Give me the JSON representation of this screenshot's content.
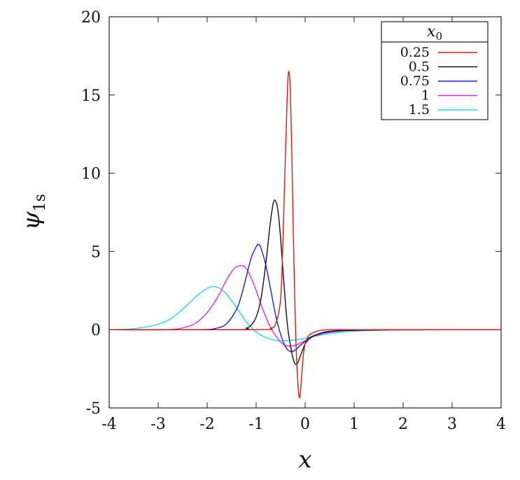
{
  "chart_data": {
    "type": "line",
    "xlabel": "x",
    "ylabel_main": "ψ",
    "ylabel_sub": "1s",
    "xlim": [
      -4,
      4
    ],
    "ylim": [
      -5,
      20
    ],
    "xticks": [
      "-4",
      "-3",
      "-2",
      "-1",
      "0",
      "1",
      "2",
      "3",
      "4"
    ],
    "xtick_values": [
      -4,
      -3,
      -2,
      -1,
      0,
      1,
      2,
      3,
      4
    ],
    "yticks": [
      "-5",
      "0",
      "5",
      "10",
      "15",
      "20"
    ],
    "ytick_values": [
      -5,
      0,
      5,
      10,
      15,
      20
    ],
    "grid": false,
    "legend": {
      "placement": "top-right",
      "title_main": "x",
      "title_sub": "0"
    },
    "series": [
      {
        "name": "0.25",
        "color": "#e8140c",
        "x": [
          -4.0,
          -1.0,
          -0.7,
          -0.6,
          -0.5,
          -0.45,
          -0.4,
          -0.36,
          -0.33,
          -0.3,
          -0.27,
          -0.24,
          -0.2,
          -0.17,
          -0.14,
          -0.12,
          -0.1,
          -0.08,
          -0.06,
          -0.04,
          0.0,
          0.05,
          0.1,
          0.2,
          0.3,
          0.5,
          1.0,
          2.0,
          4.0
        ],
        "values": [
          0.0,
          0.0,
          0.1,
          0.4,
          2.0,
          6.0,
          11.5,
          15.5,
          16.5,
          15.0,
          11.0,
          6.0,
          0.5,
          -2.2,
          -3.8,
          -4.35,
          -4.1,
          -3.4,
          -2.5,
          -1.7,
          -0.9,
          -0.5,
          -0.3,
          -0.15,
          -0.05,
          0.0,
          0.0,
          0.0,
          0.0
        ]
      },
      {
        "name": "0.5",
        "color": "#111111",
        "x": [
          -4.0,
          -1.4,
          -1.2,
          -1.1,
          -1.0,
          -0.9,
          -0.8,
          -0.72,
          -0.65,
          -0.6,
          -0.55,
          -0.5,
          -0.45,
          -0.4,
          -0.35,
          -0.3,
          -0.25,
          -0.2,
          -0.15,
          -0.1,
          -0.05,
          0.0,
          0.1,
          0.2,
          0.4,
          0.6,
          1.0,
          2.0,
          4.0
        ],
        "values": [
          0.0,
          0.0,
          0.1,
          0.3,
          0.8,
          2.0,
          4.3,
          6.6,
          8.1,
          8.2,
          7.5,
          5.8,
          3.7,
          1.6,
          0.0,
          -1.0,
          -1.8,
          -2.2,
          -2.1,
          -1.7,
          -1.3,
          -0.9,
          -0.55,
          -0.35,
          -0.15,
          -0.08,
          -0.03,
          0.0,
          0.0
        ]
      },
      {
        "name": "0.75",
        "color": "#1c1ce0",
        "x": [
          -4.0,
          -2.2,
          -1.8,
          -1.6,
          -1.4,
          -1.3,
          -1.2,
          -1.1,
          -1.0,
          -0.95,
          -0.9,
          -0.8,
          -0.7,
          -0.6,
          -0.5,
          -0.4,
          -0.3,
          -0.2,
          -0.1,
          0.0,
          0.1,
          0.2,
          0.4,
          0.7,
          1.0,
          2.0,
          4.0
        ],
        "values": [
          0.0,
          0.0,
          0.1,
          0.4,
          1.3,
          2.2,
          3.4,
          4.6,
          5.3,
          5.45,
          5.2,
          4.1,
          2.5,
          0.9,
          -0.3,
          -1.1,
          -1.4,
          -1.3,
          -1.0,
          -0.75,
          -0.5,
          -0.35,
          -0.18,
          -0.07,
          -0.03,
          0.0,
          0.0
        ]
      },
      {
        "name": "1",
        "color": "#ee22ee",
        "x": [
          -4.0,
          -2.8,
          -2.4,
          -2.2,
          -2.0,
          -1.8,
          -1.6,
          -1.45,
          -1.3,
          -1.2,
          -1.1,
          -1.0,
          -0.9,
          -0.8,
          -0.7,
          -0.6,
          -0.5,
          -0.4,
          -0.3,
          -0.2,
          -0.1,
          0.0,
          0.2,
          0.4,
          0.7,
          1.0,
          2.0,
          4.0
        ],
        "values": [
          0.0,
          0.0,
          0.2,
          0.5,
          1.1,
          2.0,
          3.2,
          3.9,
          4.1,
          3.9,
          3.3,
          2.5,
          1.6,
          0.8,
          0.1,
          -0.4,
          -0.8,
          -1.0,
          -1.05,
          -1.0,
          -0.85,
          -0.7,
          -0.4,
          -0.22,
          -0.1,
          -0.05,
          -0.01,
          0.0
        ]
      },
      {
        "name": "1.5",
        "color": "#11e0e8",
        "x": [
          -4.0,
          -3.5,
          -3.0,
          -2.7,
          -2.4,
          -2.2,
          -2.0,
          -1.9,
          -1.8,
          -1.7,
          -1.6,
          -1.5,
          -1.4,
          -1.3,
          -1.2,
          -1.0,
          -0.8,
          -0.6,
          -0.4,
          -0.2,
          0.0,
          0.2,
          0.4,
          0.7,
          1.0,
          1.5,
          2.0,
          3.0,
          4.0
        ],
        "values": [
          0.0,
          0.06,
          0.35,
          0.8,
          1.6,
          2.2,
          2.65,
          2.75,
          2.72,
          2.55,
          2.25,
          1.85,
          1.4,
          0.95,
          0.5,
          -0.15,
          -0.5,
          -0.68,
          -0.7,
          -0.65,
          -0.55,
          -0.42,
          -0.3,
          -0.18,
          -0.1,
          -0.04,
          -0.02,
          0.0,
          0.0
        ]
      }
    ]
  }
}
